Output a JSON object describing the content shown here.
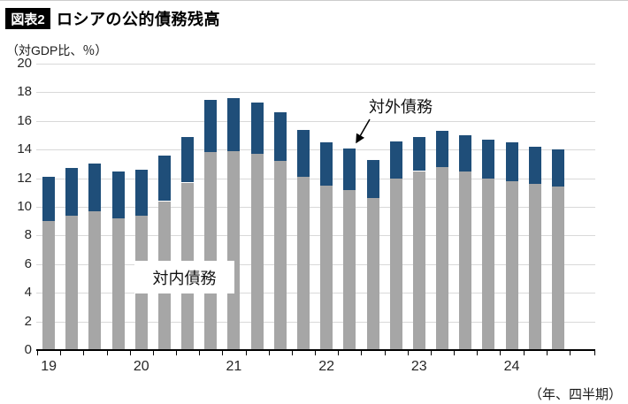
{
  "header": {
    "figure_tag": "図表2",
    "title": "ロシアの公的債務残高"
  },
  "chart_data": {
    "type": "bar",
    "stacked": true,
    "title": "ロシアの公的債務残高",
    "unit_label": "（対GDP比、％）",
    "x_unit_label": "（年、四半期）",
    "ylabel": "対GDP比、％",
    "xlabel": "年、四半期",
    "ylim": [
      0,
      20
    ],
    "ytick_step": 2,
    "grid": "horizontal",
    "legend_position": "none",
    "categories": [
      "2019Q1",
      "2019Q2",
      "2019Q3",
      "2019Q4",
      "2020Q1",
      "2020Q2",
      "2020Q3",
      "2020Q4",
      "2021Q1",
      "2021Q2",
      "2021Q3",
      "2021Q4",
      "2022Q1",
      "2022Q2",
      "2022Q3",
      "2022Q4",
      "2023Q1",
      "2023Q2",
      "2023Q3",
      "2023Q4",
      "2024Q1",
      "2024Q2",
      "2024Q3"
    ],
    "year_labels": [
      {
        "label": "19",
        "slot": 0
      },
      {
        "label": "20",
        "slot": 4
      },
      {
        "label": "21",
        "slot": 8
      },
      {
        "label": "22",
        "slot": 12
      },
      {
        "label": "23",
        "slot": 16
      },
      {
        "label": "24",
        "slot": 20
      }
    ],
    "series": [
      {
        "name": "対内債務",
        "color": "#a6a6a6",
        "values": [
          9.0,
          9.4,
          9.7,
          9.2,
          9.4,
          10.4,
          11.7,
          13.8,
          13.9,
          13.7,
          13.2,
          12.1,
          11.5,
          11.2,
          10.6,
          12.0,
          12.5,
          12.8,
          12.5,
          12.0,
          11.8,
          11.6,
          11.4
        ]
      },
      {
        "name": "対外債務",
        "color": "#1f4e79",
        "values": [
          3.1,
          3.3,
          3.3,
          3.3,
          3.2,
          3.2,
          3.2,
          3.7,
          3.7,
          3.6,
          3.4,
          3.3,
          3.0,
          2.9,
          2.7,
          2.6,
          2.4,
          2.5,
          2.5,
          2.7,
          2.7,
          2.6,
          2.6
        ]
      }
    ],
    "annotations": [
      {
        "id": "domestic-label",
        "text": "対内債務",
        "style": "white-box"
      },
      {
        "id": "external-label",
        "text": "対外債務",
        "style": "arrow",
        "target": "2022Q2"
      }
    ]
  }
}
